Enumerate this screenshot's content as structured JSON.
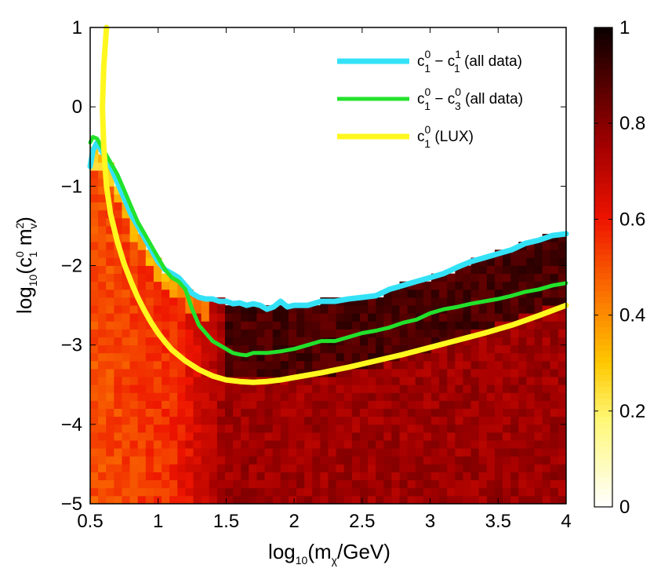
{
  "chart_data": {
    "type": "heatmap",
    "title": "",
    "x_range": [
      0.5,
      4
    ],
    "y_range": [
      -5,
      1
    ],
    "color_range": [
      0,
      1
    ],
    "x_ticks": [
      "0.5",
      "1",
      "1.5",
      "2",
      "2.5",
      "3",
      "3.5",
      "4"
    ],
    "y_ticks": [
      "1",
      "0",
      "−1",
      "−2",
      "−3",
      "−4",
      "−5"
    ],
    "colorbar_ticks": [
      "1",
      "0.8",
      "0.6",
      "0.4",
      "0.2",
      "0"
    ],
    "xlabel": {
      "prefix": "log",
      "sub": "10",
      "paren": "(m",
      "sub2": "χ",
      "tail": "/GeV)"
    },
    "ylabel": {
      "prefix": "log",
      "sub": "10",
      "paren": "(c",
      "sup1": "0",
      "sub1": "1",
      "mid": " m",
      "sup2": "2",
      "sub2": "v",
      "tail": ")"
    },
    "colors": {
      "cyan": "#34e2f7",
      "green": "#22e22c",
      "yellow": "#fff71e"
    },
    "series": [
      {
        "name": "c1^0 - c1^1 (all data)",
        "legend": {
          "base1": "c",
          "sup1": "0",
          "sub1": "1",
          "dash": " − c",
          "sup2": "1",
          "sub2": "1",
          "tail": " (all data)"
        },
        "color_key": "cyan",
        "x": [
          0.5,
          0.52,
          0.55,
          0.6,
          0.65,
          0.7,
          0.75,
          0.8,
          0.85,
          0.9,
          0.95,
          1.0,
          1.05,
          1.1,
          1.15,
          1.2,
          1.25,
          1.3,
          1.35,
          1.4,
          1.45,
          1.5,
          1.55,
          1.6,
          1.65,
          1.7,
          1.75,
          1.8,
          1.85,
          1.9,
          1.95,
          2.0,
          2.1,
          2.2,
          2.3,
          2.4,
          2.5,
          2.6,
          2.7,
          2.8,
          2.9,
          3.0,
          3.1,
          3.2,
          3.3,
          3.4,
          3.5,
          3.6,
          3.7,
          3.8,
          3.9,
          4.0
        ],
        "y": [
          -0.75,
          -0.55,
          -0.45,
          -0.6,
          -0.75,
          -0.95,
          -1.15,
          -1.35,
          -1.5,
          -1.65,
          -1.8,
          -1.95,
          -2.05,
          -2.1,
          -2.15,
          -2.25,
          -2.35,
          -2.4,
          -2.42,
          -2.42,
          -2.45,
          -2.45,
          -2.48,
          -2.47,
          -2.5,
          -2.48,
          -2.5,
          -2.55,
          -2.52,
          -2.45,
          -2.52,
          -2.5,
          -2.5,
          -2.45,
          -2.45,
          -2.42,
          -2.4,
          -2.38,
          -2.3,
          -2.25,
          -2.2,
          -2.15,
          -2.1,
          -2.02,
          -1.95,
          -1.9,
          -1.85,
          -1.8,
          -1.72,
          -1.68,
          -1.62,
          -1.6
        ]
      },
      {
        "name": "c1^0 - c3^0 (all data)",
        "legend": {
          "base1": "c",
          "sup1": "0",
          "sub1": "1",
          "dash": " − c",
          "sup2": "0",
          "sub2": "3",
          "tail": " (all data)"
        },
        "color_key": "green",
        "x": [
          0.5,
          0.52,
          0.55,
          0.6,
          0.65,
          0.7,
          0.75,
          0.8,
          0.85,
          0.9,
          0.95,
          1.0,
          1.05,
          1.1,
          1.15,
          1.2,
          1.25,
          1.3,
          1.35,
          1.4,
          1.45,
          1.5,
          1.55,
          1.6,
          1.65,
          1.7,
          1.75,
          1.8,
          1.9,
          2.0,
          2.1,
          2.2,
          2.3,
          2.4,
          2.5,
          2.6,
          2.7,
          2.8,
          2.9,
          3.0,
          3.1,
          3.2,
          3.3,
          3.4,
          3.5,
          3.6,
          3.7,
          3.8,
          3.9,
          4.0
        ],
        "y": [
          -0.45,
          -0.38,
          -0.4,
          -0.55,
          -0.7,
          -0.85,
          -1.05,
          -1.25,
          -1.45,
          -1.6,
          -1.75,
          -1.9,
          -2.05,
          -2.15,
          -2.2,
          -2.3,
          -2.55,
          -2.75,
          -2.85,
          -2.95,
          -3.0,
          -3.05,
          -3.1,
          -3.12,
          -3.13,
          -3.1,
          -3.1,
          -3.1,
          -3.08,
          -3.05,
          -3.0,
          -2.95,
          -2.95,
          -2.9,
          -2.85,
          -2.82,
          -2.78,
          -2.72,
          -2.68,
          -2.6,
          -2.55,
          -2.52,
          -2.48,
          -2.45,
          -2.42,
          -2.38,
          -2.33,
          -2.3,
          -2.25,
          -2.22
        ]
      },
      {
        "name": "c1^0 (LUX)",
        "legend": {
          "base1": "c",
          "sup1": "0",
          "sub1": "1",
          "dash": "",
          "sup2": "",
          "sub2": "",
          "tail": " (LUX)"
        },
        "color_key": "yellow",
        "x": [
          0.62,
          0.6,
          0.59,
          0.6,
          0.62,
          0.65,
          0.7,
          0.75,
          0.8,
          0.85,
          0.9,
          0.95,
          1.0,
          1.05,
          1.1,
          1.2,
          1.3,
          1.4,
          1.5,
          1.6,
          1.7,
          1.8,
          1.9,
          2.0,
          2.2,
          2.4,
          2.6,
          2.8,
          3.0,
          3.2,
          3.4,
          3.6,
          3.8,
          4.0
        ],
        "y": [
          1.0,
          0.5,
          0.0,
          -0.5,
          -1.0,
          -1.35,
          -1.7,
          -1.98,
          -2.2,
          -2.4,
          -2.57,
          -2.72,
          -2.85,
          -2.96,
          -3.06,
          -3.2,
          -3.31,
          -3.39,
          -3.44,
          -3.46,
          -3.47,
          -3.46,
          -3.44,
          -3.41,
          -3.35,
          -3.28,
          -3.2,
          -3.12,
          -3.03,
          -2.94,
          -2.85,
          -2.75,
          -2.63,
          -2.5
        ]
      }
    ]
  }
}
